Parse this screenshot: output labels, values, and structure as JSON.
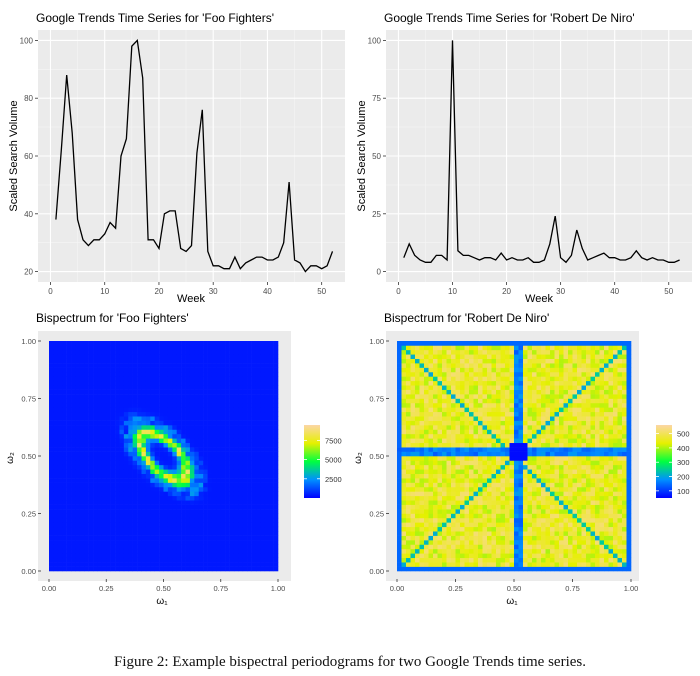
{
  "caption": "Figure 2: Example bispectral periodograms for two Google Trends time series.",
  "chart_data": [
    {
      "type": "line",
      "title": "Google Trends Time Series for 'Foo Fighters'",
      "xlabel": "Week",
      "ylabel": "Scaled Search Volume",
      "xlim": [
        0,
        52
      ],
      "ylim": [
        20,
        100
      ],
      "xticks": [
        0,
        10,
        20,
        30,
        40,
        50
      ],
      "yticks": [
        20,
        40,
        60,
        80,
        100
      ],
      "grid": true,
      "x": [
        1,
        2,
        3,
        4,
        5,
        6,
        7,
        8,
        9,
        10,
        11,
        12,
        13,
        14,
        15,
        16,
        17,
        18,
        19,
        20,
        21,
        22,
        23,
        24,
        25,
        26,
        27,
        28,
        29,
        30,
        31,
        32,
        33,
        34,
        35,
        36,
        37,
        38,
        39,
        40,
        41,
        42,
        43,
        44,
        45,
        46,
        47,
        48,
        49,
        50,
        51,
        52
      ],
      "y": [
        38,
        62,
        88,
        68,
        38,
        31,
        29,
        31,
        31,
        33,
        37,
        35,
        60,
        66,
        98,
        100,
        87,
        31,
        31,
        28,
        40,
        41,
        41,
        28,
        27,
        29,
        61,
        76,
        27,
        22,
        22,
        21,
        21,
        25,
        21,
        23,
        24,
        25,
        25,
        24,
        24,
        25,
        30,
        51,
        24,
        23,
        20,
        22,
        22,
        21,
        22,
        27
      ]
    },
    {
      "type": "line",
      "title": "Google Trends Time Series for 'Robert De Niro'",
      "xlabel": "Week",
      "ylabel": "Scaled Search Volume",
      "xlim": [
        0,
        52
      ],
      "ylim": [
        0,
        100
      ],
      "xticks": [
        0,
        10,
        20,
        30,
        40,
        50
      ],
      "yticks": [
        0,
        25,
        50,
        75,
        100
      ],
      "grid": true,
      "x": [
        1,
        2,
        3,
        4,
        5,
        6,
        7,
        8,
        9,
        10,
        11,
        12,
        13,
        14,
        15,
        16,
        17,
        18,
        19,
        20,
        21,
        22,
        23,
        24,
        25,
        26,
        27,
        28,
        29,
        30,
        31,
        32,
        33,
        34,
        35,
        36,
        37,
        38,
        39,
        40,
        41,
        42,
        43,
        44,
        45,
        46,
        47,
        48,
        49,
        50,
        51,
        52
      ],
      "y": [
        6,
        12,
        7,
        5,
        4,
        4,
        7,
        7,
        5,
        100,
        9,
        7,
        7,
        6,
        5,
        6,
        6,
        5,
        8,
        5,
        6,
        5,
        5,
        6,
        4,
        4,
        5,
        12,
        24,
        6,
        4,
        7,
        18,
        10,
        5,
        6,
        7,
        8,
        6,
        6,
        5,
        5,
        6,
        9,
        6,
        5,
        6,
        5,
        5,
        4,
        4,
        5
      ]
    },
    {
      "type": "heatmap",
      "title": "Bispectrum for 'Foo Fighters'",
      "xlabel": "ω₁",
      "ylabel": "ω₂",
      "xlim": [
        0,
        1
      ],
      "ylim": [
        0,
        1
      ],
      "xticks": [
        "0.00",
        "0.25",
        "0.50",
        "0.75",
        "1.00"
      ],
      "yticks": [
        "0.00",
        "0.25",
        "0.50",
        "0.75",
        "1.00"
      ],
      "legend": {
        "position": "right",
        "ticks": [
          2500,
          5000,
          7500
        ],
        "min": 0,
        "max": 9500
      },
      "pattern": "elliptical ring of high values around (0.5, 0.5), tilted along the anti-diagonal",
      "center": [
        0.5,
        0.5
      ],
      "peak": 8500,
      "background": 400
    },
    {
      "type": "heatmap",
      "title": "Bispectrum for 'Robert De Niro'",
      "xlabel": "ω₁",
      "ylabel": "ω₂",
      "xlim": [
        0,
        1
      ],
      "ylim": [
        0,
        1
      ],
      "xticks": [
        "0.00",
        "0.25",
        "0.50",
        "0.75",
        "1.00"
      ],
      "yticks": [
        "0.00",
        "0.25",
        "0.50",
        "0.75",
        "1.00"
      ],
      "legend": {
        "position": "right",
        "ticks": [
          100,
          200,
          300,
          400,
          500
        ],
        "min": 50,
        "max": 560
      },
      "pattern": "high plateau with low-valued bands at ω₁=0.5, ω₂=0.5 and along both diagonals",
      "peak": 520,
      "background": 480
    }
  ]
}
